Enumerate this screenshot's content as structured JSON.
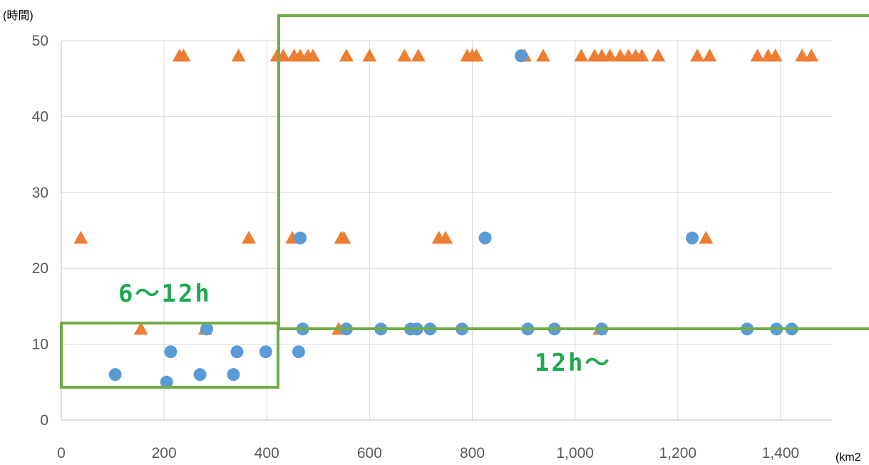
{
  "chart_data": {
    "type": "scatter",
    "title": "",
    "ylabel": "(時間)",
    "xlabel": "(km2",
    "xlim": [
      0,
      1500
    ],
    "ylim": [
      0,
      50
    ],
    "x_ticks": [
      0,
      200,
      400,
      600,
      800,
      1000,
      1200,
      1400
    ],
    "x_tick_labels": [
      "0",
      "200",
      "400",
      "600",
      "800",
      "1,000",
      "1,200",
      "1,400"
    ],
    "y_ticks": [
      0,
      10,
      20,
      30,
      40,
      50
    ],
    "y_tick_labels": [
      "0",
      "10",
      "20",
      "30",
      "40",
      "50"
    ],
    "grid": true,
    "series": [
      {
        "marker": "triangle",
        "color": "#ED7D31",
        "points": [
          [
            38,
            24
          ],
          [
            155,
            12
          ],
          [
            230,
            48
          ],
          [
            238,
            48
          ],
          [
            280,
            12
          ],
          [
            345,
            48
          ],
          [
            365,
            24
          ],
          [
            420,
            48
          ],
          [
            432,
            48
          ],
          [
            450,
            24
          ],
          [
            453,
            48
          ],
          [
            465,
            48
          ],
          [
            480,
            48
          ],
          [
            490,
            48
          ],
          [
            540,
            12
          ],
          [
            545,
            24
          ],
          [
            550,
            24
          ],
          [
            555,
            48
          ],
          [
            600,
            48
          ],
          [
            668,
            48
          ],
          [
            695,
            48
          ],
          [
            735,
            24
          ],
          [
            748,
            24
          ],
          [
            790,
            48
          ],
          [
            800,
            48
          ],
          [
            808,
            48
          ],
          [
            902,
            48
          ],
          [
            938,
            48
          ],
          [
            1012,
            48
          ],
          [
            1038,
            48
          ],
          [
            1048,
            12
          ],
          [
            1052,
            48
          ],
          [
            1068,
            48
          ],
          [
            1088,
            48
          ],
          [
            1104,
            48
          ],
          [
            1118,
            48
          ],
          [
            1130,
            48
          ],
          [
            1162,
            48
          ],
          [
            1238,
            48
          ],
          [
            1255,
            24
          ],
          [
            1262,
            48
          ],
          [
            1355,
            48
          ],
          [
            1376,
            48
          ],
          [
            1390,
            48
          ],
          [
            1442,
            48
          ],
          [
            1460,
            48
          ]
        ]
      },
      {
        "marker": "circle",
        "color": "#5B9BD5",
        "points": [
          [
            105,
            6
          ],
          [
            205,
            5
          ],
          [
            213,
            9
          ],
          [
            270,
            6
          ],
          [
            283,
            12
          ],
          [
            335,
            6
          ],
          [
            342,
            9
          ],
          [
            398,
            9
          ],
          [
            462,
            9
          ],
          [
            465,
            24
          ],
          [
            470,
            12
          ],
          [
            555,
            12
          ],
          [
            622,
            12
          ],
          [
            680,
            12
          ],
          [
            692,
            12
          ],
          [
            718,
            12
          ],
          [
            780,
            12
          ],
          [
            825,
            24
          ],
          [
            895,
            48
          ],
          [
            908,
            12
          ],
          [
            960,
            12
          ],
          [
            1052,
            12
          ],
          [
            1228,
            24
          ],
          [
            1335,
            12
          ],
          [
            1392,
            12
          ],
          [
            1422,
            12
          ]
        ]
      }
    ],
    "annotations": [
      {
        "text": "6～12h",
        "color": "#1fa84f"
      },
      {
        "text": "12h～",
        "color": "#1fa84f"
      }
    ],
    "overlay_color": "#70AD47"
  }
}
